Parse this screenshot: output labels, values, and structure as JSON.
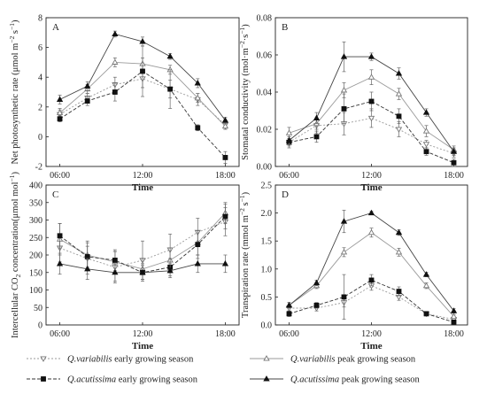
{
  "chart_data": [
    {
      "type": "line",
      "panel_letter": "A",
      "xlabel": "Time",
      "ylabel_parts": [
        "Net photosynthetic rate (μmol m",
        "−2",
        " s",
        "−1",
        ")"
      ],
      "x_ticks": [
        "06:00",
        "12:00",
        "18:00"
      ],
      "x_values": [
        "06:00",
        "08:00",
        "10:00",
        "12:00",
        "14:00",
        "16:00",
        "18:00"
      ],
      "xlim_hours": [
        5,
        19
      ],
      "ylim": [
        -2,
        8
      ],
      "y_ticks": [
        "-2",
        "0",
        "2",
        "4",
        "6",
        "8"
      ],
      "series": [
        {
          "style": "qv_early",
          "values": [
            1.5,
            2.6,
            3.5,
            3.9,
            3.2,
            2.5,
            0.8
          ],
          "errors": [
            0.3,
            0.3,
            0.5,
            0.6,
            0.6,
            0.4,
            0.3
          ]
        },
        {
          "style": "qv_peak",
          "values": [
            1.6,
            3.2,
            5.0,
            4.9,
            4.5,
            2.6,
            0.7
          ],
          "errors": [
            0.3,
            0.3,
            0.3,
            0.4,
            0.3,
            0.3,
            0.2
          ]
        },
        {
          "style": "qa_early",
          "values": [
            1.2,
            2.4,
            3.0,
            4.4,
            3.2,
            0.6,
            -1.4
          ],
          "errors": [
            0.2,
            0.3,
            0.6,
            1.7,
            1.3,
            0.2,
            0.4
          ]
        },
        {
          "style": "qa_peak",
          "values": [
            2.5,
            3.4,
            6.9,
            6.4,
            5.4,
            3.6,
            1.1
          ],
          "errors": [
            0.3,
            0.3,
            0.2,
            0.3,
            0.2,
            0.3,
            0.2
          ]
        }
      ]
    },
    {
      "type": "line",
      "panel_letter": "B",
      "xlabel": "Time",
      "ylabel_parts": [
        "Stomatal conductivity (mol·m",
        "−2",
        "·s",
        "−1",
        ")"
      ],
      "x_ticks": [
        "06:00",
        "12:00",
        "18:00"
      ],
      "x_values": [
        "06:00",
        "08:00",
        "10:00",
        "12:00",
        "14:00",
        "16:00",
        "18:00"
      ],
      "xlim_hours": [
        5,
        19
      ],
      "ylim": [
        0.0,
        0.08
      ],
      "y_ticks": [
        "0.00",
        "0.02",
        "0.04",
        "0.06",
        "0.08"
      ],
      "series": [
        {
          "style": "qv_early",
          "values": [
            0.013,
            0.022,
            0.023,
            0.026,
            0.02,
            0.012,
            0.007
          ],
          "errors": [
            0.003,
            0.004,
            0.006,
            0.005,
            0.004,
            0.002,
            0.002
          ]
        },
        {
          "style": "qv_peak",
          "values": [
            0.018,
            0.023,
            0.041,
            0.048,
            0.039,
            0.019,
            0.009
          ],
          "errors": [
            0.003,
            0.003,
            0.004,
            0.004,
            0.003,
            0.003,
            0.002
          ]
        },
        {
          "style": "qa_early",
          "values": [
            0.013,
            0.016,
            0.031,
            0.035,
            0.027,
            0.008,
            0.002
          ],
          "errors": [
            0.002,
            0.003,
            0.008,
            0.005,
            0.004,
            0.002,
            0.002
          ]
        },
        {
          "style": "qa_peak",
          "values": [
            0.014,
            0.026,
            0.059,
            0.059,
            0.05,
            0.029,
            0.008
          ],
          "errors": [
            0.002,
            0.003,
            0.008,
            0.002,
            0.003,
            0.002,
            0.002
          ]
        }
      ]
    },
    {
      "type": "line",
      "panel_letter": "C",
      "xlabel": "Time",
      "ylabel_parts": [
        "Intercellular CO",
        "2",
        " concentration(μmol mol",
        "−1",
        ")"
      ],
      "x_ticks": [
        "06:00",
        "12:00",
        "18:00"
      ],
      "x_values": [
        "06:00",
        "08:00",
        "10:00",
        "12:00",
        "14:00",
        "16:00",
        "18:00"
      ],
      "xlim_hours": [
        5,
        19
      ],
      "ylim": [
        0,
        400
      ],
      "y_ticks": [
        "0",
        "50",
        "100",
        "150",
        "200",
        "250",
        "300",
        "350",
        "400"
      ],
      "series": [
        {
          "style": "qv_early",
          "values": [
            220,
            190,
            165,
            185,
            215,
            265,
            295
          ],
          "errors": [
            40,
            45,
            45,
            55,
            45,
            40,
            40
          ]
        },
        {
          "style": "qv_peak",
          "values": [
            245,
            200,
            180,
            160,
            185,
            235,
            320
          ],
          "errors": [
            45,
            40,
            30,
            30,
            35,
            35,
            30
          ]
        },
        {
          "style": "qa_early",
          "values": [
            255,
            195,
            185,
            150,
            165,
            230,
            310
          ],
          "errors": [
            35,
            30,
            30,
            25,
            25,
            40,
            35
          ]
        },
        {
          "style": "qa_peak",
          "values": [
            175,
            160,
            150,
            150,
            155,
            175,
            175
          ],
          "errors": [
            30,
            30,
            25,
            20,
            20,
            25,
            25
          ]
        }
      ]
    },
    {
      "type": "line",
      "panel_letter": "D",
      "xlabel": "Time",
      "ylabel_parts": [
        "Transpiration rate (mmol m",
        "−2",
        " s",
        "−1",
        ")"
      ],
      "x_ticks": [
        "06:00",
        "12:00",
        "18:00"
      ],
      "x_values": [
        "06:00",
        "08:00",
        "10:00",
        "12:00",
        "14:00",
        "16:00",
        "18:00"
      ],
      "xlim_hours": [
        5,
        19
      ],
      "ylim": [
        0.0,
        2.5
      ],
      "y_ticks": [
        "0.0",
        "0.5",
        "1.0",
        "1.5",
        "2.0",
        "2.5"
      ],
      "series": [
        {
          "style": "qv_early",
          "values": [
            0.3,
            0.3,
            0.4,
            0.7,
            0.5,
            0.2,
            0.1
          ],
          "errors": [
            0.05,
            0.05,
            0.08,
            0.08,
            0.06,
            0.03,
            0.03
          ]
        },
        {
          "style": "qv_peak",
          "values": [
            0.35,
            0.7,
            1.3,
            1.65,
            1.3,
            0.7,
            0.15
          ],
          "errors": [
            0.05,
            0.05,
            0.08,
            0.08,
            0.07,
            0.05,
            0.03
          ]
        },
        {
          "style": "qa_early",
          "values": [
            0.2,
            0.35,
            0.5,
            0.8,
            0.6,
            0.2,
            0.05
          ],
          "errors": [
            0.05,
            0.05,
            0.4,
            0.1,
            0.08,
            0.04,
            0.03
          ]
        },
        {
          "style": "qa_peak",
          "values": [
            0.35,
            0.75,
            1.85,
            2.0,
            1.65,
            0.9,
            0.25
          ],
          "errors": [
            0.05,
            0.05,
            0.2,
            0.03,
            0.05,
            0.04,
            0.04
          ]
        }
      ]
    }
  ],
  "legend": [
    {
      "style": "qv_early",
      "species": "Q.variabilis",
      "season": " early growing season"
    },
    {
      "style": "qv_peak",
      "species": "Q.variabilis",
      "season": " peak growing season"
    },
    {
      "style": "qa_early",
      "species": "Q.acutissima",
      "season": " early growing season"
    },
    {
      "style": "qa_peak",
      "species": "Q.acutissima",
      "season": " peak growing season"
    }
  ],
  "styles": {
    "qv_early": {
      "marker": "tri_down_open",
      "line": "#9a9a9a",
      "dash": "2,2"
    },
    "qv_peak": {
      "marker": "tri_up_open",
      "line": "#9a9a9a",
      "dash": ""
    },
    "qa_early": {
      "marker": "square_filled",
      "line": "#333333",
      "dash": "4,2"
    },
    "qa_peak": {
      "marker": "tri_up_filled",
      "line": "#444444",
      "dash": ""
    }
  }
}
